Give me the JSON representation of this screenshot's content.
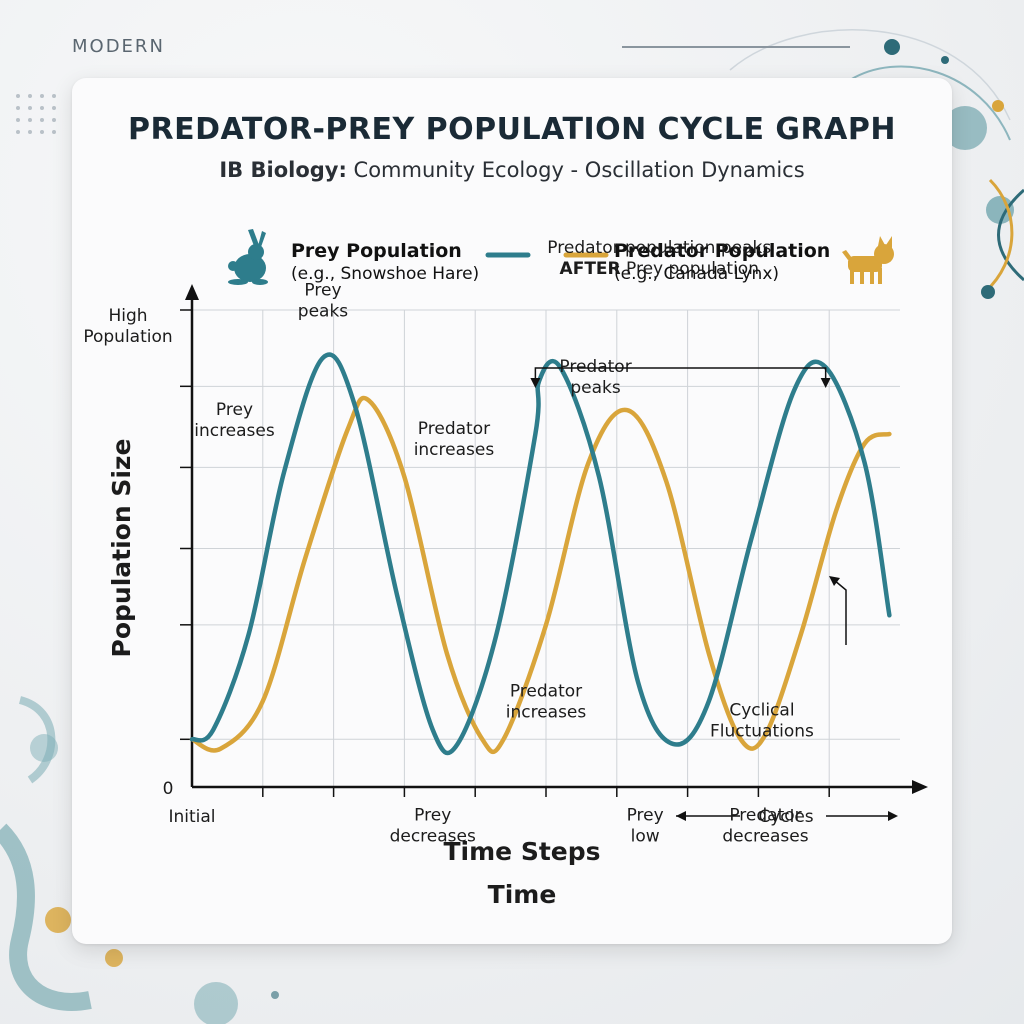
{
  "brand": "MODERN",
  "title": "PREDATOR-PREY POPULATION CYCLE GRAPH",
  "subtitle_bold": "IB Biology:",
  "subtitle_rest": " Community Ecology - Oscillation Dynamics",
  "colors": {
    "prey": "#2e7d8c",
    "predator": "#d9a53b",
    "grid": "#cfd3d7",
    "axis": "#111111"
  },
  "legend": [
    {
      "name": "Prey Population",
      "example": "(e.g., Snowshoe Hare)",
      "icon": "hare-icon"
    },
    {
      "name": "Predator Population",
      "example": "(e.g., Canada Lynx)",
      "icon": "lynx-icon"
    }
  ],
  "chart_data": {
    "type": "line",
    "xlabel": "Time Steps",
    "xlabel2": "Time",
    "ylabel": "Population Size",
    "y_top_label": "High\nPopulation",
    "y_zero_label": "0",
    "x_start_label": "Initial",
    "x_cycles_label": "Cycles",
    "grid": true,
    "xlim": [
      0,
      10
    ],
    "ylim": [
      0,
      10
    ],
    "series": [
      {
        "name": "Prey Population",
        "values": [
          [
            0,
            1.0
          ],
          [
            0.3,
            1.2
          ],
          [
            0.8,
            3.2
          ],
          [
            1.3,
            6.6
          ],
          [
            1.85,
            9.0
          ],
          [
            2.3,
            8.0
          ],
          [
            2.9,
            4.0
          ],
          [
            3.4,
            1.2
          ],
          [
            3.75,
            0.9
          ],
          [
            4.3,
            3.2
          ],
          [
            4.85,
            7.4
          ],
          [
            4.9,
            8.5
          ],
          [
            5.2,
            8.8
          ],
          [
            5.75,
            6.5
          ],
          [
            6.3,
            2.2
          ],
          [
            6.8,
            0.9
          ],
          [
            7.3,
            1.8
          ],
          [
            7.9,
            5.2
          ],
          [
            8.5,
            8.3
          ],
          [
            8.95,
            8.8
          ],
          [
            9.5,
            6.8
          ],
          [
            9.85,
            3.6
          ]
        ]
      },
      {
        "name": "Predator Population",
        "values": [
          [
            0,
            1.0
          ],
          [
            0.4,
            0.8
          ],
          [
            1.0,
            1.8
          ],
          [
            1.6,
            4.8
          ],
          [
            2.2,
            7.5
          ],
          [
            2.5,
            8.1
          ],
          [
            3.0,
            6.5
          ],
          [
            3.6,
            2.8
          ],
          [
            4.1,
            1.0
          ],
          [
            4.4,
            1.0
          ],
          [
            5.0,
            3.4
          ],
          [
            5.6,
            6.8
          ],
          [
            6.15,
            7.9
          ],
          [
            6.7,
            6.4
          ],
          [
            7.3,
            2.8
          ],
          [
            7.75,
            1.0
          ],
          [
            8.1,
            1.1
          ],
          [
            8.6,
            3.2
          ],
          [
            9.1,
            5.8
          ],
          [
            9.5,
            7.2
          ],
          [
            9.85,
            7.4
          ]
        ]
      }
    ],
    "annotations": [
      {
        "text": "Prey\npeaks",
        "x": 1.85,
        "y": 10.3
      },
      {
        "text": "Prey\nincreases",
        "x": 0.6,
        "y": 7.8
      },
      {
        "text": "Predator\nincreases",
        "x": 3.7,
        "y": 7.4
      },
      {
        "text": "Predator population peaks\nAFTER Prey population",
        "x": 6.6,
        "y": 11.2,
        "bold_word": "AFTER"
      },
      {
        "text": "Predator\npeaks",
        "x": 5.7,
        "y": 8.7
      },
      {
        "text": "Predator\nincreases",
        "x": 5.0,
        "y": 1.9
      },
      {
        "text": "Prey\ndecreases",
        "x": 3.4,
        "y": -0.7
      },
      {
        "text": "Prey\nlow",
        "x": 6.4,
        "y": -0.7
      },
      {
        "text": "Cyclical\nFluctuations",
        "x": 8.05,
        "y": 1.5
      },
      {
        "text": "Predator\ndecreases",
        "x": 8.1,
        "y": -0.7
      }
    ]
  }
}
